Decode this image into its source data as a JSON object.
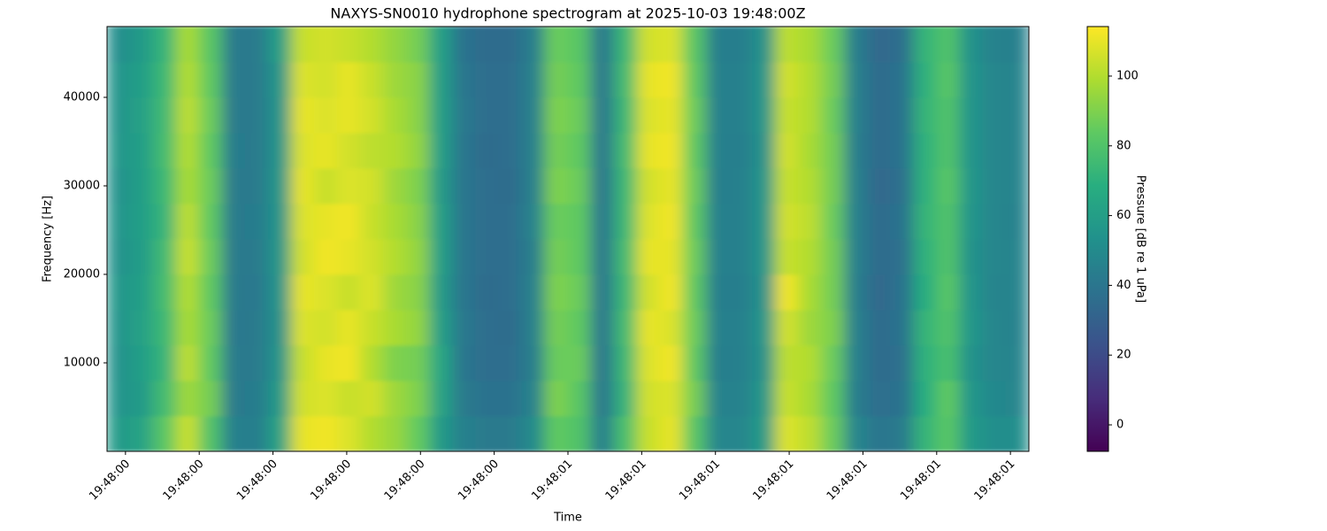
{
  "chart_data": {
    "type": "heatmap",
    "title": "NAXYS-SN0010 hydrophone spectrogram at 2025-10-03 19:48:00Z",
    "x_label": "Time",
    "y_label": "Frequency [Hz]",
    "colorbar_label": "Pressure [dB re 1 uPa]",
    "colormap": "viridis",
    "xlim": [
      0.375,
      1.625
    ],
    "xticks": [
      {
        "value": 0.4,
        "label": "19:48:00"
      },
      {
        "value": 0.5,
        "label": "19:48:00"
      },
      {
        "value": 0.6,
        "label": "19:48:00"
      },
      {
        "value": 0.7,
        "label": "19:48:00"
      },
      {
        "value": 0.8,
        "label": "19:48:00"
      },
      {
        "value": 0.9,
        "label": "19:48:00"
      },
      {
        "value": 1.0,
        "label": "19:48:01"
      },
      {
        "value": 1.1,
        "label": "19:48:01"
      },
      {
        "value": 1.2,
        "label": "19:48:01"
      },
      {
        "value": 1.3,
        "label": "19:48:01"
      },
      {
        "value": 1.4,
        "label": "19:48:01"
      },
      {
        "value": 1.5,
        "label": "19:48:01"
      },
      {
        "value": 1.6,
        "label": "19:48:01"
      }
    ],
    "ylim": [
      0,
      48000
    ],
    "yticks": [
      10000,
      20000,
      30000,
      40000
    ],
    "clim": [
      -7.6,
      114.2
    ],
    "cticks": [
      0,
      20,
      40,
      60,
      80,
      100
    ],
    "xbins": [
      0.375,
      0.40625,
      0.4375,
      0.46875,
      0.5,
      0.53125,
      0.5625,
      0.59375,
      0.625,
      0.65625,
      0.6875,
      0.71875,
      0.75,
      0.78125,
      0.8125,
      0.84375,
      0.875,
      0.90625,
      0.9375,
      0.96875,
      1.0,
      1.03125,
      1.0625,
      1.09375,
      1.125,
      1.15625,
      1.1875,
      1.21875,
      1.25,
      1.28125,
      1.3125,
      1.34375,
      1.375,
      1.40625,
      1.4375,
      1.46875,
      1.5,
      1.53125,
      1.5625,
      1.59375,
      1.625
    ],
    "ybins": [
      0,
      4000,
      8000,
      12000,
      16000,
      20000,
      24000,
      28000,
      32000,
      36000,
      40000,
      44000,
      48000
    ],
    "z": [
      [
        58,
        62,
        82,
        104,
        80,
        45,
        44,
        62,
        110,
        112,
        108,
        100,
        95,
        85,
        58,
        45,
        42,
        42,
        50,
        84,
        80,
        44,
        78,
        104,
        110,
        82,
        48,
        48,
        58,
        108,
        102,
        86,
        48,
        40,
        42,
        72,
        82,
        58,
        52,
        52
      ],
      [
        55,
        58,
        76,
        96,
        88,
        42,
        43,
        58,
        106,
        108,
        104,
        106,
        96,
        90,
        62,
        42,
        38,
        38,
        46,
        90,
        82,
        40,
        72,
        106,
        108,
        88,
        46,
        46,
        56,
        104,
        98,
        84,
        44,
        36,
        38,
        68,
        84,
        56,
        49,
        48
      ],
      [
        54,
        60,
        72,
        102,
        84,
        42,
        42,
        55,
        104,
        110,
        112,
        100,
        90,
        88,
        64,
        40,
        36,
        36,
        44,
        86,
        86,
        39,
        74,
        108,
        112,
        84,
        44,
        45,
        54,
        102,
        100,
        86,
        45,
        35,
        37,
        70,
        78,
        54,
        48,
        47
      ],
      [
        55,
        61,
        74,
        98,
        86,
        41,
        42,
        54,
        108,
        106,
        110,
        104,
        98,
        94,
        60,
        41,
        36,
        35,
        45,
        88,
        84,
        40,
        76,
        110,
        108,
        86,
        45,
        45,
        55,
        106,
        96,
        90,
        45,
        35,
        38,
        72,
        80,
        56,
        48,
        46
      ],
      [
        56,
        60,
        76,
        100,
        84,
        42,
        41,
        55,
        110,
        108,
        104,
        108,
        96,
        92,
        58,
        40,
        35,
        36,
        45,
        90,
        86,
        40,
        74,
        106,
        112,
        84,
        44,
        44,
        54,
        112,
        98,
        88,
        44,
        34,
        38,
        68,
        82,
        55,
        47,
        47
      ],
      [
        54,
        59,
        75,
        104,
        86,
        42,
        42,
        56,
        106,
        112,
        110,
        106,
        100,
        94,
        60,
        40,
        36,
        36,
        44,
        88,
        84,
        40,
        76,
        110,
        110,
        86,
        45,
        45,
        55,
        104,
        100,
        88,
        45,
        35,
        37,
        70,
        80,
        54,
        48,
        47
      ],
      [
        55,
        60,
        72,
        102,
        84,
        42,
        43,
        55,
        108,
        110,
        112,
        104,
        98,
        92,
        60,
        40,
        36,
        36,
        46,
        86,
        84,
        40,
        74,
        108,
        112,
        84,
        45,
        45,
        55,
        106,
        102,
        86,
        45,
        35,
        38,
        72,
        80,
        55,
        48,
        46
      ],
      [
        54,
        60,
        74,
        98,
        86,
        42,
        42,
        56,
        110,
        104,
        108,
        106,
        96,
        90,
        58,
        40,
        36,
        35,
        45,
        90,
        86,
        39,
        74,
        106,
        110,
        86,
        44,
        45,
        55,
        104,
        100,
        88,
        45,
        34,
        37,
        70,
        82,
        56,
        48,
        47
      ],
      [
        56,
        60,
        76,
        100,
        84,
        43,
        42,
        55,
        108,
        110,
        106,
        102,
        100,
        94,
        60,
        40,
        35,
        36,
        45,
        88,
        84,
        40,
        76,
        110,
        112,
        84,
        45,
        44,
        54,
        106,
        98,
        88,
        44,
        35,
        38,
        70,
        80,
        55,
        48,
        47
      ],
      [
        55,
        61,
        75,
        102,
        86,
        42,
        42,
        55,
        110,
        108,
        110,
        106,
        98,
        92,
        60,
        41,
        36,
        36,
        45,
        90,
        86,
        40,
        74,
        108,
        110,
        86,
        45,
        45,
        55,
        104,
        100,
        86,
        45,
        35,
        38,
        72,
        80,
        55,
        48,
        47
      ],
      [
        55,
        60,
        74,
        100,
        84,
        42,
        42,
        56,
        108,
        106,
        110,
        104,
        96,
        92,
        60,
        40,
        36,
        36,
        45,
        88,
        84,
        40,
        76,
        110,
        112,
        84,
        45,
        45,
        55,
        106,
        100,
        88,
        45,
        35,
        38,
        70,
        82,
        55,
        48,
        47
      ],
      [
        52,
        58,
        72,
        98,
        82,
        42,
        42,
        60,
        104,
        106,
        104,
        100,
        94,
        88,
        60,
        38,
        35,
        35,
        44,
        86,
        82,
        40,
        74,
        106,
        108,
        82,
        44,
        44,
        54,
        102,
        98,
        86,
        44,
        34,
        36,
        72,
        80,
        54,
        46,
        45
      ]
    ]
  }
}
